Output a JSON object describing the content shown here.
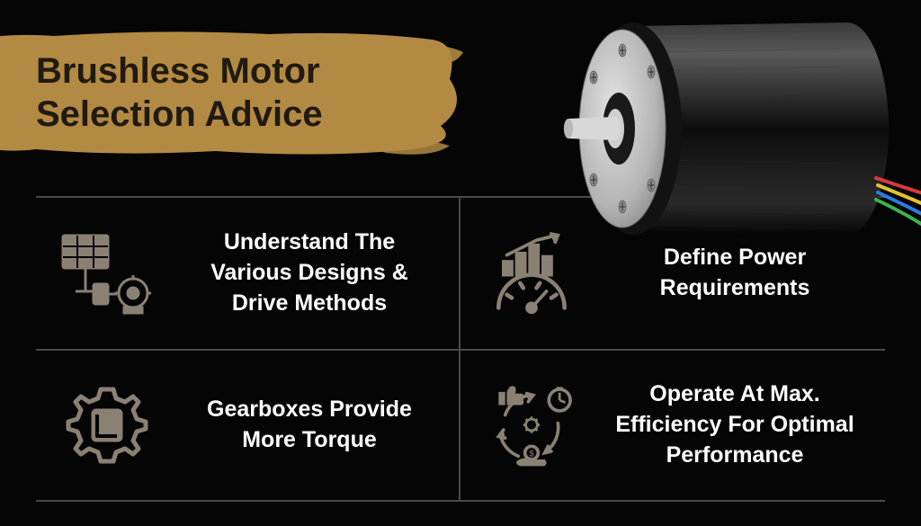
{
  "title": "Brushless Motor\nSelection Advice",
  "title_color": "#201a12",
  "banner_color": "#b38a43",
  "background_color": "#050505",
  "grid_border_color": "#4a4a4a",
  "text_color": "#fefefe",
  "icon_color": "#8a8074",
  "cells": [
    {
      "text": "Understand The Various Designs & Drive Methods",
      "icon": "solar-motor"
    },
    {
      "text": "Define Power Requirements",
      "icon": "gauge-chart"
    },
    {
      "text": "Gearboxes Provide More Torque",
      "icon": "gear-box"
    },
    {
      "text": "Operate At Max. Efficiency For Optimal Performance",
      "icon": "efficiency-cycle"
    }
  ],
  "motor": {
    "body_color": "#1a1a1a",
    "face_color": "#c0c0c0",
    "shaft_color": "#d8d8d8",
    "screw_color": "#8e8e8e",
    "wire_colors": [
      "#d93a3a",
      "#e6c12a",
      "#2a7de6",
      "#3ab54a"
    ]
  }
}
